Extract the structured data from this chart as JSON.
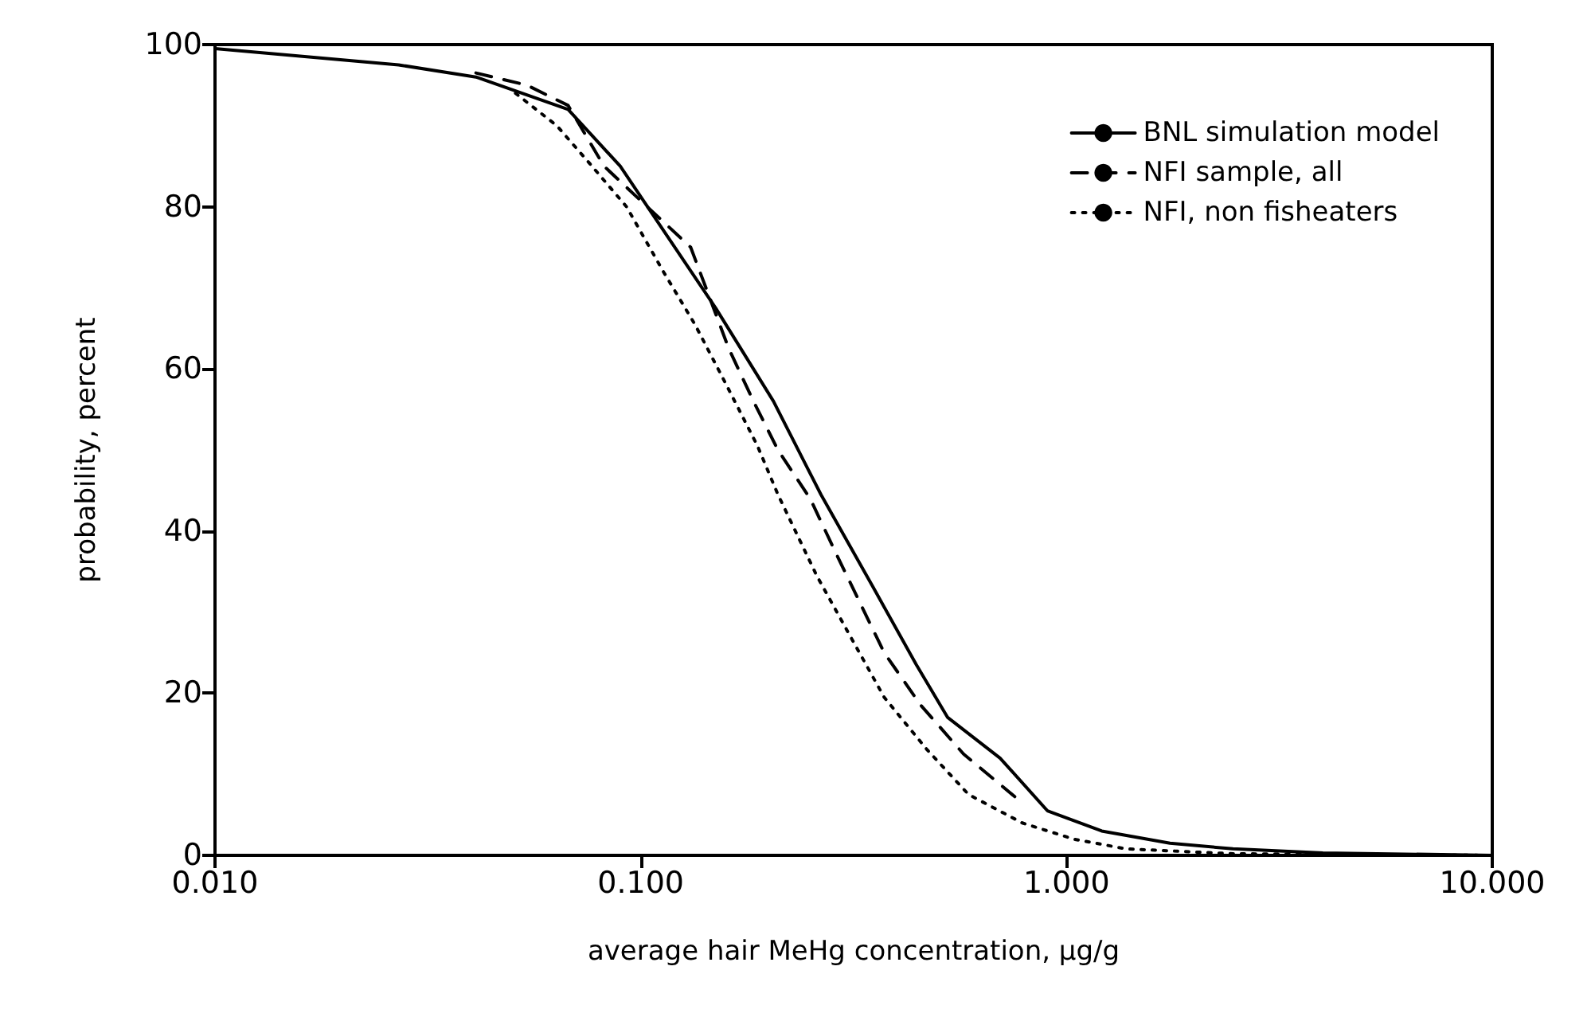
{
  "chart_data": {
    "type": "line",
    "xlabel": "average hair MeHg concentration, μg/g",
    "ylabel": "probability, percent",
    "log": "x",
    "xlim": [
      0.01,
      10
    ],
    "xticks": [
      {
        "value": 0.01,
        "label": "0.010"
      },
      {
        "value": 0.1,
        "label": "0.100"
      },
      {
        "value": 1,
        "label": "1.000"
      },
      {
        "value": 10,
        "label": "10.000"
      }
    ],
    "ylim": [
      0,
      100
    ],
    "yticks": [
      0,
      20,
      40,
      60,
      80,
      100
    ],
    "grid": false,
    "legend": "top right",
    "marker": "none",
    "series": [
      {
        "name": "BNL simulation model",
        "color": "#000000",
        "line_style": "solid",
        "x": [
          0.01,
          0.027,
          0.041,
          0.0675,
          0.0895,
          0.15,
          0.205,
          0.265,
          0.352,
          0.444,
          0.526,
          0.698,
          0.902,
          1.21,
          1.75,
          2.46,
          4,
          10
        ],
        "values": [
          99.5,
          97.5,
          96,
          92,
          85,
          67.5,
          56,
          44.5,
          33,
          23.5,
          17,
          12,
          5.5,
          3,
          1.5,
          0.8,
          0.3,
          0
        ]
      },
      {
        "name": "NFI sample, all",
        "color": "#000000",
        "line_style": "dashed",
        "x": [
          0.041,
          0.054,
          0.0675,
          0.082,
          0.106,
          0.131,
          0.161,
          0.184,
          0.21,
          0.25,
          0.289,
          0.373,
          0.455,
          0.573,
          0.786
        ],
        "values": [
          96.5,
          95,
          92.5,
          85,
          79.5,
          75,
          62.5,
          56,
          50,
          44,
          37,
          25,
          18.5,
          12.5,
          6.5
        ]
      },
      {
        "name": "NFI, non fisheaters",
        "color": "#000000",
        "line_style": "dotted",
        "x": [
          0.0508,
          0.0635,
          0.0754,
          0.0926,
          0.113,
          0.134,
          0.159,
          0.188,
          0.21,
          0.259,
          0.307,
          0.373,
          0.471,
          0.589,
          0.787,
          1.04,
          1.38,
          2.46,
          10
        ],
        "values": [
          94,
          90,
          85.5,
          80,
          72,
          65.5,
          58,
          50.5,
          44.5,
          34.5,
          27.5,
          19.5,
          13,
          7.5,
          4,
          2,
          0.8,
          0.2,
          0
        ]
      }
    ]
  }
}
